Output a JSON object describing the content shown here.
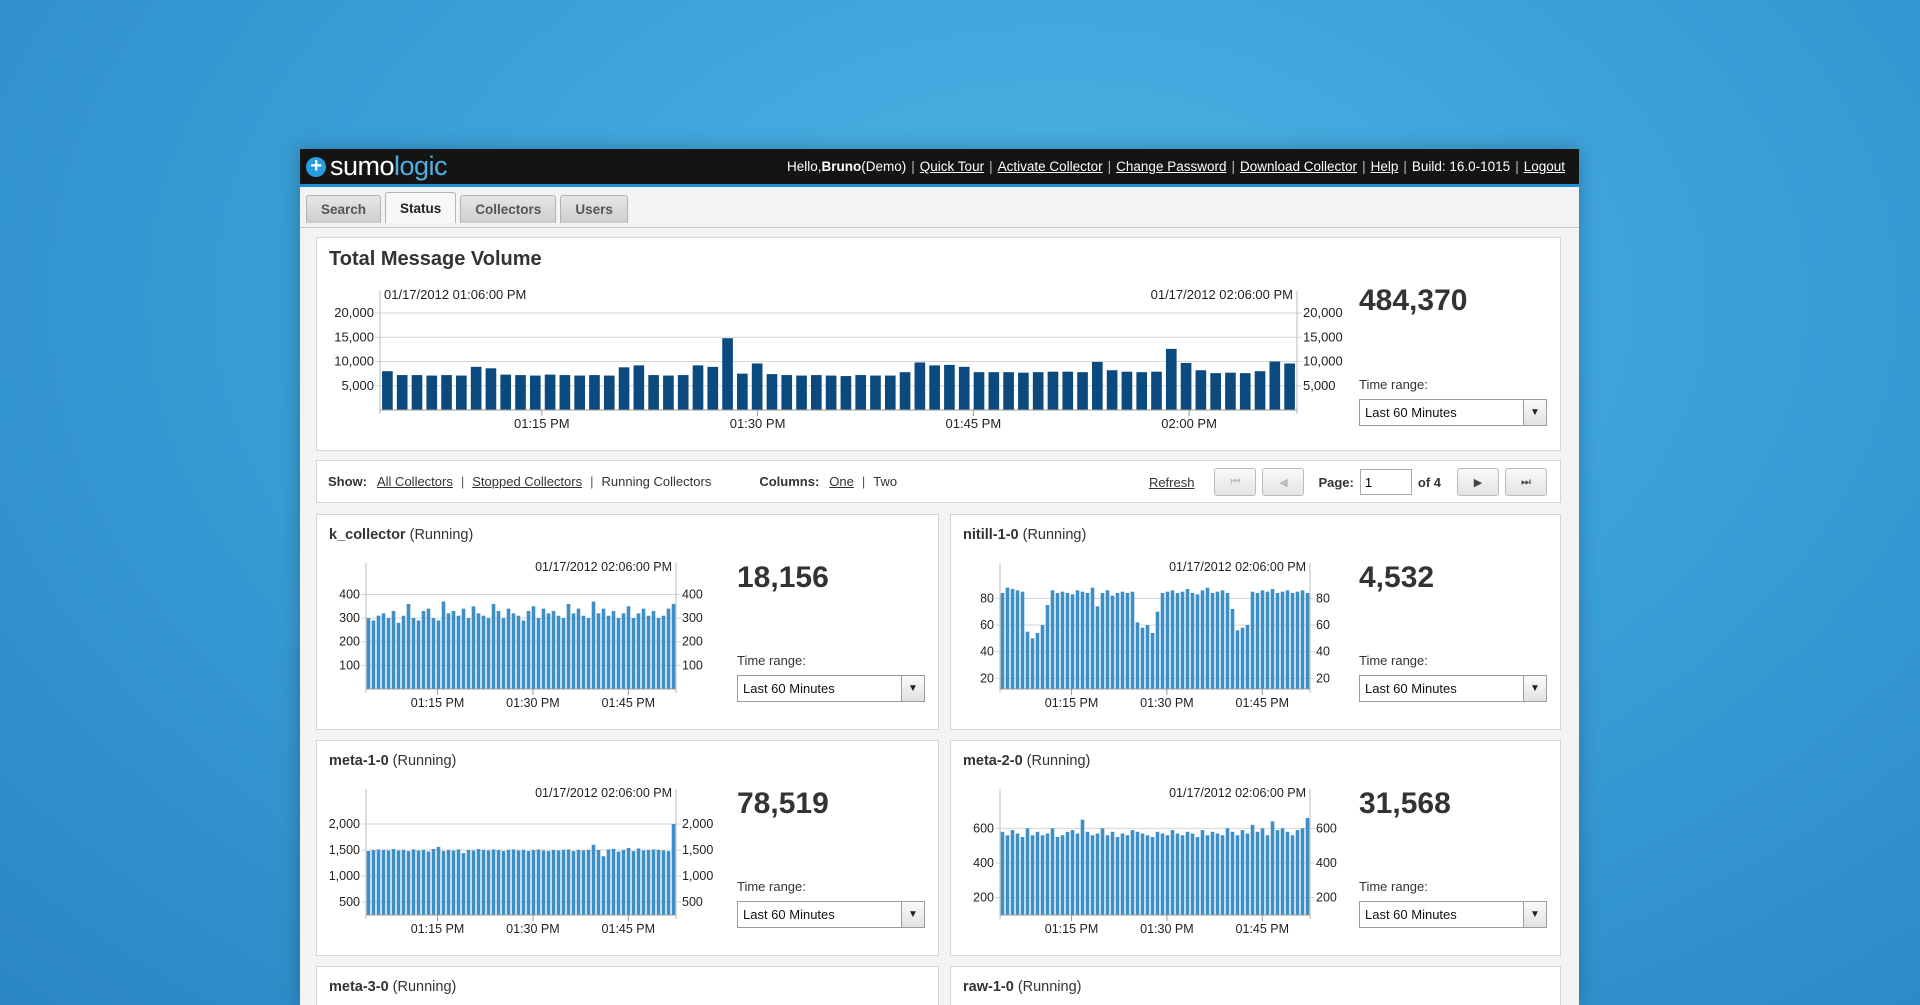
{
  "header": {
    "logo_sumo": "sumo",
    "logo_logic": "logic",
    "greeting_prefix": "Hello, ",
    "user": "Bruno",
    "greeting_suffix": " (Demo)",
    "links": [
      "Quick Tour",
      "Activate Collector",
      "Change Password",
      "Download Collector",
      "Help"
    ],
    "build": "Build: 16.0-1015",
    "logout": "Logout"
  },
  "tabs": [
    "Search",
    "Status",
    "Collectors",
    "Users"
  ],
  "active_tab": "Status",
  "total": {
    "title": "Total Message Volume",
    "count": "484,370",
    "time_range_label": "Time range:",
    "time_range_value": "Last 60 Minutes"
  },
  "showbar": {
    "show_label": "Show:",
    "all_collectors": "All Collectors",
    "stopped_collectors": "Stopped Collectors",
    "running_collectors": "Running Collectors",
    "columns_label": "Columns:",
    "one": "One",
    "two": "Two",
    "refresh": "Refresh",
    "page_label": "Page:",
    "page_value": "1",
    "page_total": "of 4"
  },
  "collectors": [
    {
      "name": "k_collector",
      "status": "(Running)",
      "count": "18,156",
      "time_range_label": "Time range:",
      "time_range_value": "Last 60 Minutes"
    },
    {
      "name": "nitill-1-0",
      "status": "(Running)",
      "count": "4,532",
      "time_range_label": "Time range:",
      "time_range_value": "Last 60 Minutes"
    },
    {
      "name": "meta-1-0",
      "status": "(Running)",
      "count": "78,519",
      "time_range_label": "Time range:",
      "time_range_value": "Last 60 Minutes"
    },
    {
      "name": "meta-2-0",
      "status": "(Running)",
      "count": "31,568",
      "time_range_label": "Time range:",
      "time_range_value": "Last 60 Minutes"
    },
    {
      "name": "meta-3-0",
      "status": "(Running)"
    },
    {
      "name": "raw-1-0",
      "status": "(Running)"
    }
  ],
  "colors": {
    "total_bar": "#0b4a7e",
    "collector_bar": "#3d8fc6",
    "accent": "#1f8fd6"
  },
  "chart_data": [
    {
      "id": "total",
      "type": "bar",
      "start_label": "01/17/2012 01:06:00 PM",
      "end_label": "01/17/2012 02:06:00 PM",
      "x_ticks": [
        "01:15 PM",
        "01:30 PM",
        "01:45 PM",
        "02:00 PM"
      ],
      "y_ticks": [
        "20,000",
        "15,000",
        "10,000",
        "5,000"
      ],
      "ylim": [
        0,
        20000
      ],
      "values": [
        8000,
        7200,
        7200,
        7100,
        7200,
        7100,
        8900,
        8600,
        7300,
        7200,
        7100,
        7300,
        7200,
        7100,
        7200,
        7100,
        8800,
        9200,
        7200,
        7100,
        7200,
        9200,
        8900,
        14800,
        7500,
        9600,
        7400,
        7200,
        7100,
        7200,
        7100,
        7000,
        7200,
        7100,
        7100,
        7800,
        9800,
        9200,
        9300,
        8900,
        7800,
        7800,
        7800,
        7700,
        7800,
        7900,
        7900,
        7800,
        9900,
        8200,
        7900,
        7800,
        7900,
        12600,
        9700,
        8200,
        7600,
        7700,
        7600,
        8000,
        10000,
        9600
      ]
    },
    {
      "id": "k_collector",
      "type": "bar",
      "end_label": "01/17/2012 02:06:00 PM",
      "x_ticks": [
        "01:15 PM",
        "01:30 PM",
        "01:45 PM"
      ],
      "y_ticks": [
        "400",
        "300",
        "200",
        "100"
      ],
      "ylim": [
        0,
        440
      ],
      "values": [
        300,
        290,
        310,
        320,
        300,
        330,
        280,
        310,
        360,
        300,
        290,
        330,
        340,
        300,
        290,
        370,
        320,
        330,
        310,
        340,
        300,
        350,
        320,
        310,
        300,
        360,
        330,
        300,
        340,
        320,
        310,
        290,
        330,
        350,
        300,
        340,
        320,
        330,
        310,
        300,
        360,
        320,
        340,
        310,
        300,
        370,
        320,
        340,
        310,
        330,
        300,
        320,
        350,
        300,
        320,
        340,
        310,
        330,
        300,
        310,
        340,
        360
      ]
    },
    {
      "id": "nitill-1-0",
      "type": "bar",
      "end_label": "01/17/2012 02:06:00 PM",
      "x_ticks": [
        "01:15 PM",
        "01:30 PM",
        "01:45 PM"
      ],
      "y_ticks": [
        "80",
        "60",
        "40",
        "20"
      ],
      "ylim": [
        12,
        90
      ],
      "values": [
        84,
        88,
        87,
        86,
        85,
        55,
        50,
        54,
        60,
        75,
        86,
        84,
        85,
        84,
        83,
        86,
        85,
        84,
        88,
        74,
        84,
        86,
        82,
        84,
        85,
        84,
        85,
        62,
        58,
        60,
        54,
        70,
        84,
        85,
        86,
        84,
        85,
        87,
        84,
        83,
        86,
        88,
        84,
        85,
        86,
        84,
        72,
        56,
        58,
        60,
        85,
        84,
        86,
        85,
        87,
        84,
        85,
        86,
        84,
        85,
        86,
        84
      ]
    },
    {
      "id": "meta-1-0",
      "type": "bar",
      "end_label": "01/17/2012 02:06:00 PM",
      "x_ticks": [
        "01:15 PM",
        "01:30 PM",
        "01:45 PM"
      ],
      "y_ticks": [
        "2,000",
        "1,500",
        "1,000",
        "500"
      ],
      "ylim": [
        250,
        2250
      ],
      "values": [
        1480,
        1500,
        1510,
        1500,
        1490,
        1520,
        1490,
        1500,
        1480,
        1510,
        1490,
        1500,
        1470,
        1520,
        1560,
        1480,
        1500,
        1490,
        1510,
        1440,
        1500,
        1490,
        1520,
        1500,
        1490,
        1510,
        1500,
        1480,
        1500,
        1510,
        1490,
        1500,
        1480,
        1500,
        1510,
        1490,
        1480,
        1500,
        1490,
        1500,
        1510,
        1480,
        1500,
        1490,
        1500,
        1600,
        1500,
        1380,
        1510,
        1520,
        1470,
        1500,
        1540,
        1480,
        1530,
        1490,
        1500,
        1510,
        1500,
        1490,
        1480,
        2000
      ]
    },
    {
      "id": "meta-2-0",
      "type": "bar",
      "end_label": "01/17/2012 02:06:00 PM",
      "x_ticks": [
        "01:15 PM",
        "01:30 PM",
        "01:45 PM"
      ],
      "y_ticks": [
        "600",
        "400",
        "200"
      ],
      "ylim": [
        100,
        700
      ],
      "values": [
        580,
        560,
        590,
        570,
        550,
        600,
        560,
        580,
        560,
        570,
        600,
        550,
        560,
        580,
        590,
        570,
        650,
        580,
        560,
        570,
        600,
        560,
        580,
        550,
        570,
        560,
        590,
        580,
        570,
        560,
        550,
        580,
        570,
        560,
        590,
        570,
        560,
        580,
        570,
        550,
        590,
        560,
        580,
        570,
        560,
        600,
        580,
        560,
        590,
        570,
        620,
        580,
        600,
        560,
        640,
        590,
        600,
        580,
        560,
        590,
        600,
        660
      ]
    }
  ]
}
